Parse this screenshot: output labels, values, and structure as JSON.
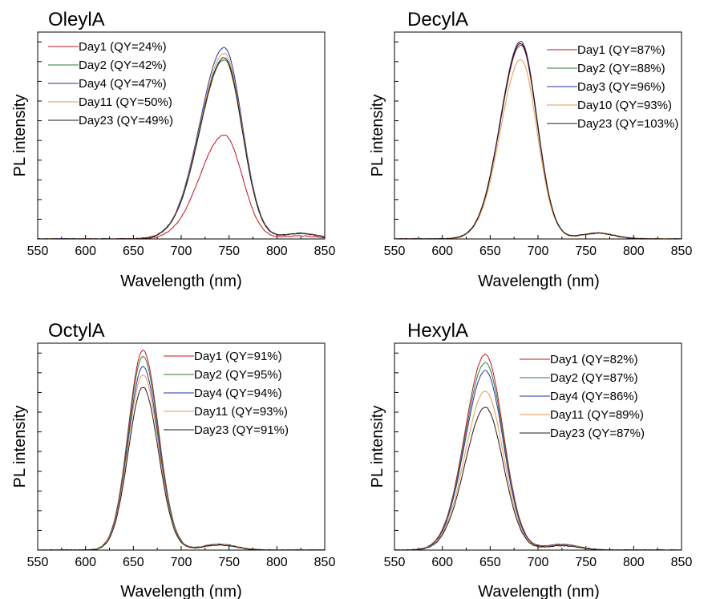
{
  "colors": {
    "Day1": "#c0141b",
    "Day2": "#2f7a3b",
    "Day3": "#2630a8",
    "Day4": "#2630a8",
    "Day10": "#e39a4a",
    "Day11": "#e39a4a",
    "Day23": "#2a1414"
  },
  "chart_data": [
    {
      "type": "line",
      "title": "OleylA",
      "xlabel": "Wavelength (nm)",
      "ylabel": "PL intensity",
      "xlim": [
        550,
        850
      ],
      "xticks": [
        550,
        600,
        650,
        700,
        750,
        800,
        850
      ],
      "y_tick_labels": false,
      "legend_position": "top-left",
      "peak_nm": 745,
      "width_left": 30,
      "width_right": 22,
      "series": [
        {
          "name": "Day1 (QY=24%)",
          "color_key": "Day1",
          "peak": 0.51
        },
        {
          "name": "Day2 (QY=42%)",
          "color_key": "Day2",
          "peak": 0.88
        },
        {
          "name": "Day4 (QY=47%)",
          "color_key": "Day4",
          "peak": 0.94
        },
        {
          "name": "Day11 (QY=50%)",
          "color_key": "Day11",
          "peak": 0.91
        },
        {
          "name": "Day23 (QY=49%)",
          "color_key": "Day23",
          "peak": 0.89
        }
      ]
    },
    {
      "type": "line",
      "title": "DecylA",
      "xlabel": "Wavelength (nm)",
      "ylabel": "PL intensity",
      "xlim": [
        550,
        850
      ],
      "xticks": [
        550,
        600,
        650,
        700,
        750,
        800,
        850
      ],
      "y_tick_labels": false,
      "legend_position": "top-right",
      "peak_nm": 682,
      "width_left": 25,
      "width_right": 20,
      "series": [
        {
          "name": "Day1 (QY=87%)",
          "color_key": "Day1",
          "peak": 0.95
        },
        {
          "name": "Day2 (QY=88%)",
          "color_key": "Day2",
          "peak": 0.96
        },
        {
          "name": "Day3 (QY=96%)",
          "color_key": "Day3",
          "peak": 0.97
        },
        {
          "name": "Day10 (QY=93%)",
          "color_key": "Day10",
          "peak": 0.88
        },
        {
          "name": "Day23 (QY=103%)",
          "color_key": "Day23",
          "peak": 0.96
        }
      ]
    },
    {
      "type": "line",
      "title": "OctylA",
      "xlabel": "Wavelength (nm)",
      "ylabel": "PL intensity",
      "xlim": [
        550,
        850
      ],
      "xticks": [
        550,
        600,
        650,
        700,
        750,
        800,
        850
      ],
      "y_tick_labels": false,
      "legend_position": "top-right",
      "peak_nm": 660,
      "width_left": 18,
      "width_right": 19,
      "series": [
        {
          "name": "Day1 (QY=91%)",
          "color_key": "Day1",
          "peak": 0.98
        },
        {
          "name": "Day2 (QY=95%)",
          "color_key": "Day2",
          "peak": 0.95
        },
        {
          "name": "Day4 (QY=94%)",
          "color_key": "Day4",
          "peak": 0.9
        },
        {
          "name": "Day11 (QY=93%)",
          "color_key": "Day11",
          "peak": 0.86
        },
        {
          "name": "Day23 (QY=91%)",
          "color_key": "Day23",
          "peak": 0.8
        }
      ]
    },
    {
      "type": "line",
      "title": "HexylA",
      "xlabel": "Wavelength (nm)",
      "ylabel": "PL intensity",
      "xlim": [
        550,
        850
      ],
      "xticks": [
        550,
        600,
        650,
        700,
        750,
        800,
        850
      ],
      "y_tick_labels": false,
      "legend_position": "top-right",
      "peak_nm": 645,
      "width_left": 25,
      "width_right": 22,
      "series": [
        {
          "name": "Day1 (QY=82%)",
          "color_key": "Day1",
          "peak": 0.96
        },
        {
          "name": "Day2 (QY=87%)",
          "color_key": "Day2",
          "peak": 0.92
        },
        {
          "name": "Day4 (QY=86%)",
          "color_key": "Day4",
          "peak": 0.88
        },
        {
          "name": "Day11 (QY=89%)",
          "color_key": "Day11",
          "peak": 0.78
        },
        {
          "name": "Day23 (QY=87%)",
          "color_key": "Day23",
          "peak": 0.7
        }
      ]
    }
  ]
}
